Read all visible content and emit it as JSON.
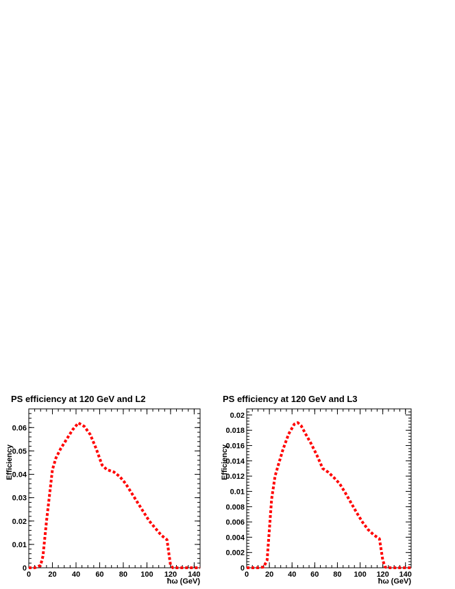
{
  "chart_data": [
    {
      "type": "line",
      "title": "PS efficiency at 120 GeV and L2",
      "xlabel": "ħω (GeV)",
      "ylabel": "Efficiency",
      "xlim": [
        0,
        145
      ],
      "ylim": [
        0,
        0.068
      ],
      "xticks": [
        "0",
        "20",
        "40",
        "60",
        "80",
        "100",
        "120",
        "140"
      ],
      "xtick_values": [
        0,
        20,
        40,
        60,
        80,
        100,
        120,
        140
      ],
      "yticks": [
        "0",
        "0.01",
        "0.02",
        "0.03",
        "0.04",
        "0.05",
        "0.06"
      ],
      "ytick_values": [
        0,
        0.01,
        0.02,
        0.03,
        0.04,
        0.05,
        0.06
      ],
      "grid": false,
      "series": [
        {
          "color": "#ff0000",
          "style": "dotted",
          "x": [
            0,
            5,
            10,
            12,
            15,
            18,
            20,
            23,
            27,
            32,
            37,
            42,
            47,
            52,
            57,
            62,
            66,
            72,
            77,
            82,
            87,
            92,
            97,
            102,
            107,
            112,
            117,
            120,
            122,
            125,
            130,
            135,
            140,
            145
          ],
          "y": [
            0,
            0,
            0.001,
            0.005,
            0.02,
            0.033,
            0.042,
            0.047,
            0.051,
            0.055,
            0.059,
            0.062,
            0.0605,
            0.057,
            0.051,
            0.044,
            0.042,
            0.041,
            0.039,
            0.036,
            0.032,
            0.028,
            0.024,
            0.02,
            0.017,
            0.014,
            0.012,
            0.001,
            0.0,
            0,
            0,
            0,
            0,
            0
          ]
        }
      ]
    },
    {
      "type": "line",
      "title": "PS efficiency at 120 GeV and L3",
      "xlabel": "ħω (GeV)",
      "ylabel": "Efficiency",
      "xlim": [
        0,
        145
      ],
      "ylim": [
        0,
        0.0208
      ],
      "xticks": [
        "0",
        "20",
        "40",
        "60",
        "80",
        "100",
        "120",
        "140"
      ],
      "xtick_values": [
        0,
        20,
        40,
        60,
        80,
        100,
        120,
        140
      ],
      "yticks": [
        "0",
        "0.002",
        "0.004",
        "0.006",
        "0.008",
        "0.01",
        "0.012",
        "0.014",
        "0.016",
        "0.018",
        "0.02"
      ],
      "ytick_values": [
        0,
        0.002,
        0.004,
        0.006,
        0.008,
        0.01,
        0.012,
        0.014,
        0.016,
        0.018,
        0.02
      ],
      "grid": false,
      "series": [
        {
          "color": "#ff0000",
          "style": "dotted",
          "x": [
            0,
            5,
            10,
            15,
            18,
            20,
            22,
            25,
            28,
            32,
            37,
            42,
            45,
            48,
            52,
            57,
            62,
            67,
            72,
            77,
            82,
            87,
            92,
            97,
            102,
            107,
            112,
            117,
            120,
            122,
            125,
            130,
            135,
            140,
            145
          ],
          "y": [
            0,
            0,
            0,
            0.0001,
            0.001,
            0.005,
            0.009,
            0.012,
            0.0135,
            0.0155,
            0.0175,
            0.0188,
            0.019,
            0.0186,
            0.0175,
            0.0162,
            0.0147,
            0.013,
            0.0125,
            0.0118,
            0.011,
            0.0098,
            0.0085,
            0.0072,
            0.006,
            0.005,
            0.0043,
            0.0038,
            0.001,
            0.0001,
            0,
            0,
            0,
            0,
            0
          ]
        }
      ]
    }
  ]
}
